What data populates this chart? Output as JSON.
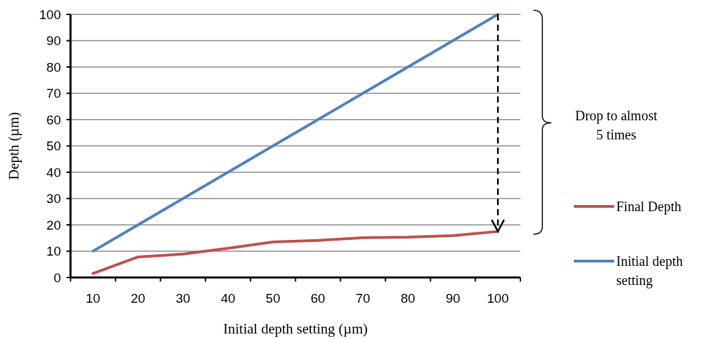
{
  "chart_data": {
    "type": "line",
    "xlabel": "Initial depth setting (µm)",
    "ylabel": "Depth (µm)",
    "categories": [
      "10",
      "20",
      "30",
      "40",
      "50",
      "60",
      "70",
      "80",
      "90",
      "100"
    ],
    "series": [
      {
        "name": "Final Depth",
        "color": "#c0504d",
        "values": [
          1.5,
          7.8,
          8.9,
          11.1,
          13.5,
          14.1,
          15.1,
          15.3,
          15.9,
          17.5
        ]
      },
      {
        "name": "Initial depth setting",
        "color": "#4f81bd",
        "values": [
          10,
          20,
          30,
          40,
          50,
          60,
          70,
          80,
          90,
          100
        ]
      }
    ],
    "ylim": [
      0,
      100
    ],
    "yticks": [
      0,
      10,
      20,
      30,
      40,
      50,
      60,
      70,
      80,
      90,
      100
    ],
    "grid": "y",
    "legend": "right",
    "marker": "none",
    "line_style": "solid",
    "annotations": [
      "Drop to almost 5 times"
    ]
  }
}
